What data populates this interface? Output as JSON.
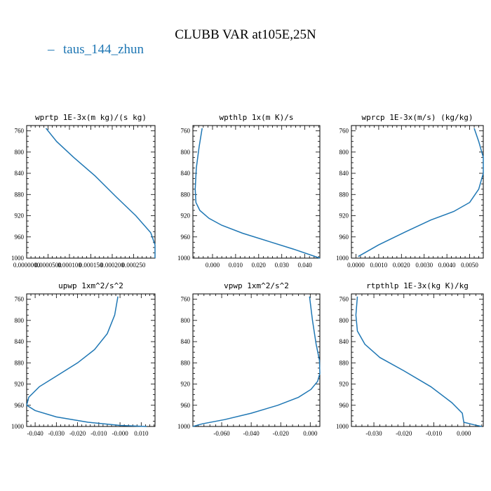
{
  "figure": {
    "title": "CLUBB VAR at105E,25N",
    "legend": {
      "label": "taus_144_zhun",
      "color": "#1f77b4"
    }
  },
  "chart_data": [
    {
      "type": "line",
      "title": "wprtp  1E-3x(m kg)/(s kg)",
      "xlim": [
        0.0,
        0.0003
      ],
      "ylim": [
        1000,
        750
      ],
      "y_ticks": [
        760,
        800,
        840,
        880,
        920,
        960,
        1000
      ],
      "x_ticks": [
        0.0,
        5e-05,
        0.0001,
        0.00015,
        0.0002,
        0.00025
      ],
      "x_tick_labels": [
        "0.0000000",
        "0.0000500",
        "0.000100",
        "0.000150",
        "0.000200",
        "0.000250"
      ],
      "series": [
        {
          "color": "#1f77b4",
          "x": [
            4.5e-05,
            7e-05,
            0.00011,
            0.00016,
            0.00021,
            0.000255,
            0.00029,
            0.0003,
            0.0003
          ],
          "y": [
            755,
            780,
            810,
            845,
            885,
            920,
            952,
            975,
            1000
          ]
        }
      ]
    },
    {
      "type": "line",
      "title": "wpthlp  1x(m K)/s",
      "xlim": [
        -0.0085,
        0.0465
      ],
      "ylim": [
        1000,
        750
      ],
      "y_ticks": [
        760,
        800,
        840,
        880,
        920,
        960,
        1000
      ],
      "x_ticks": [
        0.0,
        0.01,
        0.02,
        0.03,
        0.04
      ],
      "x_tick_labels": [
        "0.000",
        "0.010",
        "0.020",
        "0.030",
        "0.040"
      ],
      "series": [
        {
          "color": "#1f77b4",
          "x": [
            -0.0045,
            -0.0058,
            -0.007,
            -0.0075,
            -0.0072,
            -0.0055,
            -0.0015,
            0.004,
            0.013,
            0.024,
            0.035,
            0.0465
          ],
          "y": [
            755,
            790,
            830,
            870,
            895,
            910,
            925,
            938,
            953,
            968,
            983,
            1000
          ]
        }
      ]
    },
    {
      "type": "line",
      "title": "wprcp  1E-3x(m/s) (kg/kg)",
      "xlim": [
        -0.0002,
        0.0056
      ],
      "ylim": [
        1000,
        750
      ],
      "y_ticks": [
        760,
        800,
        840,
        880,
        920,
        960,
        1000
      ],
      "x_ticks": [
        0.0,
        0.001,
        0.002,
        0.003,
        0.004,
        0.005
      ],
      "x_tick_labels": [
        "0.0000",
        "0.0010",
        "0.0020",
        "0.0030",
        "0.0040",
        "0.0050"
      ],
      "series": [
        {
          "color": "#1f77b4",
          "x": [
            0.0052,
            0.0054,
            0.0056,
            0.0056,
            0.0054,
            0.005,
            0.0043,
            0.0033,
            0.0022,
            0.001,
            0.0001
          ],
          "y": [
            755,
            780,
            810,
            840,
            870,
            895,
            912,
            928,
            950,
            975,
            997
          ]
        }
      ]
    },
    {
      "type": "line",
      "title": "upwp  1xm^2/s^2",
      "xlim": [
        -0.044,
        0.0165
      ],
      "ylim": [
        1000,
        750
      ],
      "y_ticks": [
        760,
        800,
        840,
        880,
        920,
        960,
        1000
      ],
      "x_ticks": [
        -0.04,
        -0.03,
        -0.02,
        -0.01,
        0.0,
        0.01
      ],
      "x_tick_labels": [
        "-0.040",
        "-0.030",
        "-0.020",
        "-0.010",
        "-0.000",
        "0.010"
      ],
      "series": [
        {
          "color": "#1f77b4",
          "x": [
            -0.001,
            -0.0025,
            -0.006,
            -0.012,
            -0.02,
            -0.03,
            -0.038,
            -0.043,
            -0.044,
            -0.04,
            -0.03,
            -0.015,
            0.0,
            0.0125
          ],
          "y": [
            755,
            790,
            825,
            855,
            880,
            905,
            925,
            945,
            960,
            970,
            982,
            992,
            998,
            1000
          ]
        }
      ]
    },
    {
      "type": "line",
      "title": "vpwp  1xm^2/s^2",
      "xlim": [
        -0.0795,
        0.0065
      ],
      "ylim": [
        1000,
        750
      ],
      "y_ticks": [
        760,
        800,
        840,
        880,
        920,
        960,
        1000
      ],
      "x_ticks": [
        -0.06,
        -0.04,
        -0.02,
        0.0
      ],
      "x_tick_labels": [
        "-0.060",
        "-0.040",
        "-0.020",
        "0.000"
      ],
      "series": [
        {
          "color": "#1f77b4",
          "x": [
            -0.0005,
            0.0015,
            0.004,
            0.0062,
            0.0065,
            0.005,
            0.0005,
            -0.008,
            -0.022,
            -0.04,
            -0.058,
            -0.073,
            -0.0795
          ],
          "y": [
            755,
            800,
            845,
            875,
            900,
            915,
            930,
            945,
            960,
            975,
            987,
            995,
            1000
          ]
        }
      ]
    },
    {
      "type": "line",
      "title": "rtpthlp  1E-3x(kg K)/kg",
      "xlim": [
        -0.0375,
        0.0065
      ],
      "ylim": [
        1000,
        750
      ],
      "y_ticks": [
        760,
        800,
        840,
        880,
        920,
        960,
        1000
      ],
      "x_ticks": [
        -0.03,
        -0.02,
        -0.01,
        0.0
      ],
      "x_tick_labels": [
        "-0.030",
        "-0.020",
        "-0.010",
        "0.000"
      ],
      "series": [
        {
          "color": "#1f77b4",
          "x": [
            -0.0355,
            -0.036,
            -0.0355,
            -0.033,
            -0.028,
            -0.02,
            -0.011,
            -0.004,
            -0.0005,
            0.0,
            0.0035,
            0.006
          ],
          "y": [
            755,
            790,
            820,
            845,
            870,
            895,
            925,
            955,
            975,
            992,
            997,
            1000
          ]
        }
      ]
    }
  ]
}
